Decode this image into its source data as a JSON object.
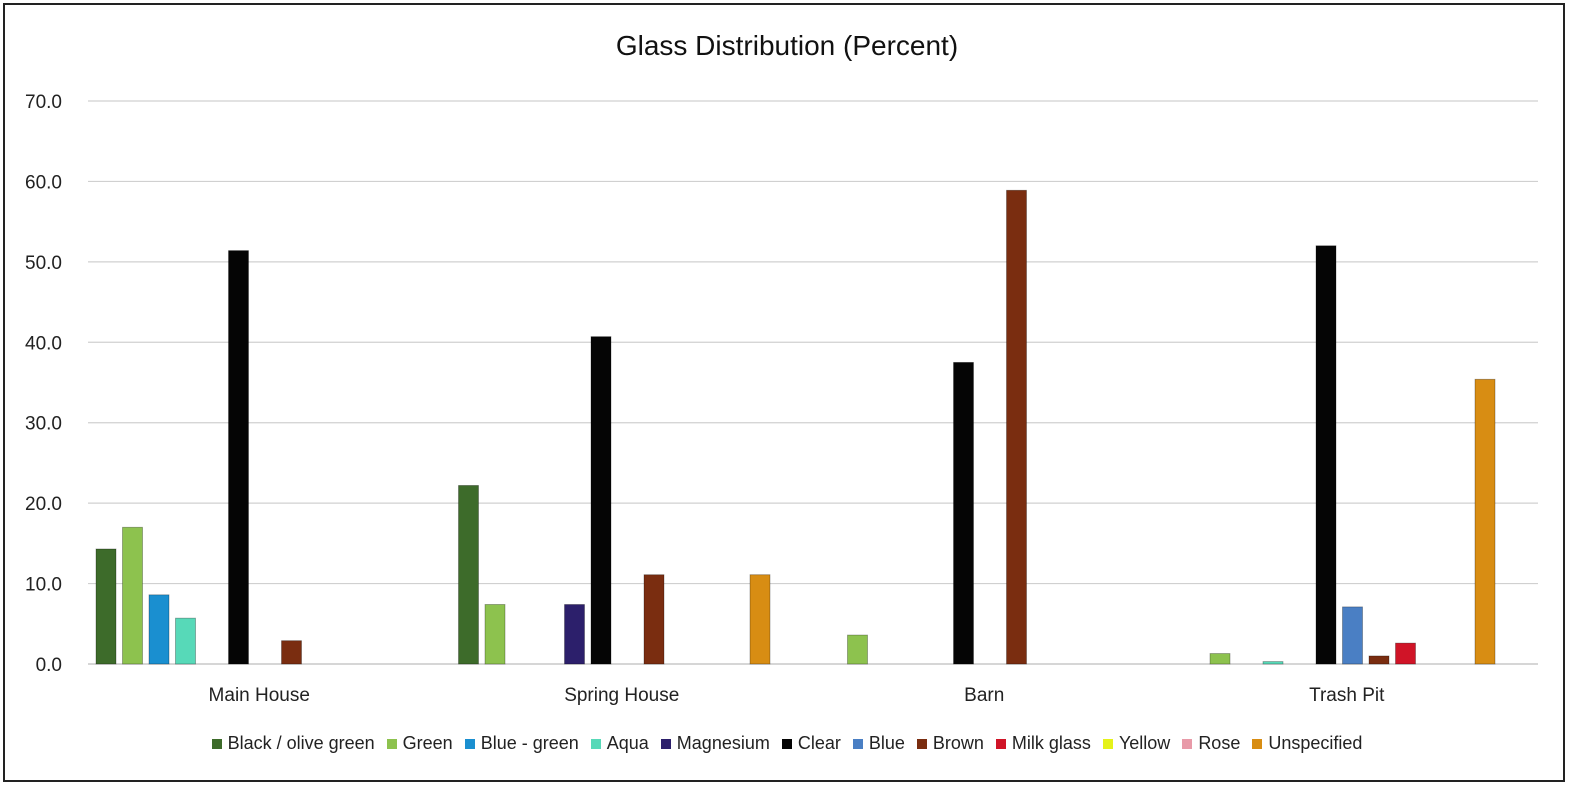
{
  "chart_data": {
    "type": "bar",
    "title": "Glass Distribution (Percent)",
    "xlabel": "",
    "ylabel": "",
    "ylim": [
      0,
      70
    ],
    "yticks": [
      "0.0",
      "10.0",
      "20.0",
      "30.0",
      "40.0",
      "50.0",
      "60.0",
      "70.0"
    ],
    "grid": true,
    "legend_position": "bottom",
    "categories": [
      "Main House",
      "Spring House",
      "Barn",
      "Trash Pit"
    ],
    "series": [
      {
        "name": "Black / olive green",
        "color": "#3d6b2a",
        "values": [
          14.3,
          22.2,
          0,
          0
        ]
      },
      {
        "name": "Green",
        "color": "#8dc24e",
        "values": [
          17.0,
          7.4,
          3.6,
          1.3
        ]
      },
      {
        "name": "Blue - green",
        "color": "#1a8fd0",
        "values": [
          8.6,
          0,
          0,
          0
        ]
      },
      {
        "name": "Aqua",
        "color": "#57d9b8",
        "values": [
          5.7,
          0,
          0,
          0.3
        ]
      },
      {
        "name": "Magnesium",
        "color": "#2c1f6b",
        "values": [
          0,
          7.4,
          0,
          0
        ]
      },
      {
        "name": "Clear",
        "color": "#050505",
        "values": [
          51.4,
          40.7,
          37.5,
          52.0
        ]
      },
      {
        "name": "Blue",
        "color": "#4a7fc4",
        "values": [
          0,
          0,
          0,
          7.1
        ]
      },
      {
        "name": "Brown",
        "color": "#7a2d10",
        "values": [
          2.9,
          11.1,
          58.9,
          1.0
        ]
      },
      {
        "name": "Milk glass",
        "color": "#d01427",
        "values": [
          0,
          0,
          0,
          2.6
        ]
      },
      {
        "name": "Yellow",
        "color": "#e5f21a",
        "values": [
          0,
          0,
          0,
          0
        ]
      },
      {
        "name": "Rose",
        "color": "#e89aa8",
        "values": [
          0,
          0,
          0,
          0
        ]
      },
      {
        "name": "Unspecified",
        "color": "#d88d13",
        "values": [
          0,
          11.1,
          0,
          35.4
        ]
      }
    ]
  }
}
